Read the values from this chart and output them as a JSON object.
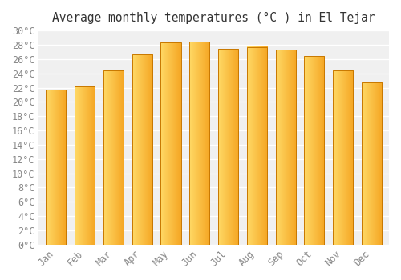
{
  "title": "Average monthly temperatures (°C ) in El Tejar",
  "months": [
    "Jan",
    "Feb",
    "Mar",
    "Apr",
    "May",
    "Jun",
    "Jul",
    "Aug",
    "Sep",
    "Oct",
    "Nov",
    "Dec"
  ],
  "values": [
    21.7,
    22.2,
    24.4,
    26.6,
    28.3,
    28.4,
    27.4,
    27.7,
    27.3,
    26.4,
    24.4,
    22.7
  ],
  "bar_color_left": "#FFD966",
  "bar_color_right": "#F5A623",
  "bar_border_color": "#C87800",
  "ylim": [
    0,
    30
  ],
  "ytick_step": 2,
  "background_color": "#ffffff",
  "plot_bg_color": "#f0f0f0",
  "grid_color": "#ffffff",
  "title_fontsize": 10.5,
  "tick_fontsize": 8.5,
  "tick_label_color": "#888888",
  "title_color": "#333333",
  "bar_width": 0.7
}
